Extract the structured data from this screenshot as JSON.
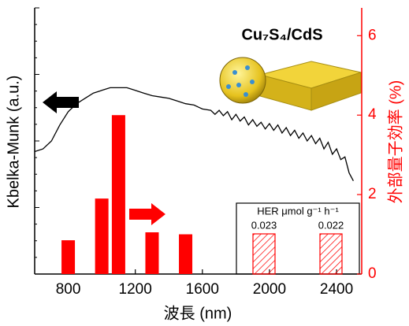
{
  "chart_data": {
    "type": "combo",
    "annotation": "Cu₇S₄/CdS",
    "x_label": "波長 (nm)",
    "y_label": "Kbelka-Munk (a.u.)",
    "y2_label": "外部量子効率 (%)",
    "xlim": [
      600,
      2550
    ],
    "xticks": [
      800,
      1200,
      1600,
      2000,
      2400
    ],
    "ylim": [
      0,
      1
    ],
    "y2lim": [
      0,
      6.7
    ],
    "y2ticks": [
      0,
      2,
      4,
      6
    ],
    "series": [
      {
        "type": "line",
        "color": "#000000",
        "axis": "y",
        "x": [
          600,
          650,
          700,
          750,
          800,
          850,
          900,
          950,
          1000,
          1050,
          1100,
          1150,
          1200,
          1250,
          1300,
          1350,
          1400,
          1450,
          1500,
          1550,
          1600,
          1650,
          1675,
          1700,
          1725,
          1750,
          1775,
          1800,
          1825,
          1850,
          1875,
          1900,
          1925,
          1950,
          1975,
          2000,
          2025,
          2050,
          2075,
          2100,
          2125,
          2150,
          2175,
          2200,
          2225,
          2250,
          2275,
          2300,
          2325,
          2350,
          2375,
          2400,
          2425,
          2450,
          2475,
          2500
        ],
        "values": [
          0.46,
          0.47,
          0.5,
          0.56,
          0.61,
          0.64,
          0.66,
          0.68,
          0.69,
          0.7,
          0.7,
          0.7,
          0.69,
          0.68,
          0.67,
          0.665,
          0.66,
          0.65,
          0.64,
          0.635,
          0.62,
          0.615,
          0.6,
          0.615,
          0.595,
          0.61,
          0.58,
          0.6,
          0.575,
          0.59,
          0.56,
          0.58,
          0.555,
          0.57,
          0.545,
          0.565,
          0.54,
          0.56,
          0.53,
          0.55,
          0.52,
          0.54,
          0.51,
          0.53,
          0.5,
          0.52,
          0.49,
          0.51,
          0.47,
          0.495,
          0.45,
          0.47,
          0.43,
          0.44,
          0.38,
          0.35
        ]
      },
      {
        "type": "bar",
        "color": "#ff0000",
        "axis": "y2",
        "x": [
          800,
          1000,
          1100,
          1300,
          1500
        ],
        "values": [
          0.85,
          1.9,
          4.0,
          1.05,
          1.0
        ]
      }
    ],
    "inset": {
      "title": "HER  μmol g⁻¹ h⁻¹",
      "values": [
        0.023,
        0.022
      ]
    }
  }
}
